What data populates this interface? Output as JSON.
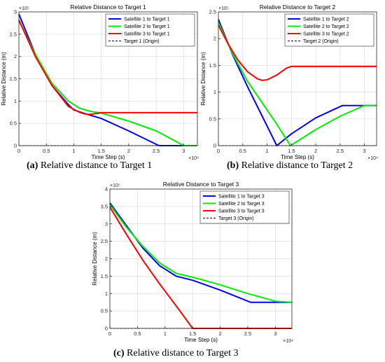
{
  "captions": [
    {
      "tag": "(a)",
      "text": " Relative distance to Target 1"
    },
    {
      "tag": "(b)",
      "text": " Relative distance to Target 2"
    },
    {
      "tag": "(c)",
      "text": " Relative distance to Target 3"
    }
  ],
  "colors": {
    "blue": "#0000ff",
    "green": "#00ee00",
    "red": "#ff0000",
    "black": "#000000"
  },
  "chart_data": [
    {
      "type": "line",
      "title": "Relative Distance to Target 1",
      "xlabel": "Time Step (s)",
      "ylabel": "Relative Distance (m)",
      "xlim": [
        0,
        32500
      ],
      "ylim": [
        0,
        300000
      ],
      "x_exponent": "×10⁴",
      "y_exponent": "×10⁵",
      "xticks": [
        0,
        5000,
        10000,
        15000,
        20000,
        25000,
        30000
      ],
      "xtick_labels": [
        "0",
        "0.5",
        "1",
        "1.5",
        "2",
        "2.5",
        "3"
      ],
      "yticks": [
        0,
        50000,
        100000,
        150000,
        200000,
        250000,
        300000
      ],
      "ytick_labels": [
        "0",
        "0.5",
        "1",
        "1.5",
        "2",
        "2.5",
        "3"
      ],
      "grid": true,
      "legend_position": "top-right",
      "series": [
        {
          "name": "Satellite 1 to Target 1",
          "color": "#0000ff",
          "x": [
            0,
            3000,
            6000,
            9000,
            10000,
            12000,
            15000,
            20000,
            25500,
            32500
          ],
          "y": [
            295000,
            205000,
            135000,
            92000,
            80000,
            72000,
            61000,
            33000,
            0,
            0
          ]
        },
        {
          "name": "Satellite 2 to Target 1",
          "color": "#00ee00",
          "x": [
            0,
            3000,
            6000,
            9000,
            11000,
            13000,
            15000,
            20000,
            25000,
            30000,
            32500
          ],
          "y": [
            280000,
            205000,
            140000,
            100000,
            84000,
            77000,
            73000,
            55000,
            33000,
            0,
            0
          ]
        },
        {
          "name": "Satellite 3 to Target 1",
          "color": "#ff0000",
          "x": [
            0,
            3000,
            6000,
            9000,
            11000,
            12000,
            13000,
            14000,
            15000,
            20000,
            32500
          ],
          "y": [
            282000,
            200000,
            135000,
            88000,
            75000,
            71000,
            70000,
            72000,
            74000,
            74000,
            74000
          ]
        },
        {
          "name": "Target 1 (Origin)",
          "color": "#000000",
          "dashed": true,
          "x": [
            0,
            32500
          ],
          "y": [
            0,
            0
          ]
        }
      ]
    },
    {
      "type": "line",
      "title": "Relative Distance to Target 2",
      "xlabel": "Time Step (s)",
      "ylabel": "Relative Distance (m)",
      "xlim": [
        0,
        32500
      ],
      "ylim": [
        0,
        250000
      ],
      "x_exponent": "×10⁴",
      "y_exponent": "×10⁵",
      "xticks": [
        0,
        5000,
        10000,
        15000,
        20000,
        25000,
        30000
      ],
      "xtick_labels": [
        "0",
        "0.5",
        "1",
        "1.5",
        "2",
        "2.5",
        "3"
      ],
      "yticks": [
        0,
        50000,
        100000,
        150000,
        200000,
        250000
      ],
      "ytick_labels": [
        "0",
        "0.5",
        "1",
        "1.5",
        "2",
        "2.5"
      ],
      "grid": true,
      "legend_position": "top-right",
      "series": [
        {
          "name": "Satellite 1 to Target 2",
          "color": "#0000ff",
          "x": [
            0,
            3000,
            6000,
            9000,
            12000,
            15000,
            20000,
            25500,
            32500
          ],
          "y": [
            236000,
            168000,
            110000,
            55000,
            0,
            22000,
            52000,
            75000,
            75000
          ]
        },
        {
          "name": "Satellite 2 to Target 2",
          "color": "#00ee00",
          "x": [
            0,
            3000,
            6000,
            9000,
            12000,
            14800,
            20000,
            25000,
            30000,
            32500
          ],
          "y": [
            230000,
            170000,
            120000,
            80000,
            40000,
            0,
            30000,
            55000,
            75000,
            75000
          ]
        },
        {
          "name": "Satellite 3 to Target 2",
          "color": "#ff0000",
          "x": [
            0,
            2000,
            4000,
            6000,
            8000,
            9000,
            10000,
            12000,
            14000,
            15000,
            20000,
            32500
          ],
          "y": [
            225000,
            190000,
            160000,
            138000,
            125000,
            122000,
            123000,
            132000,
            145000,
            148000,
            148000,
            148000
          ]
        },
        {
          "name": "Target 2 (Origin)",
          "color": "#000000",
          "dashed": true,
          "x": [
            0,
            32500
          ],
          "y": [
            0,
            0
          ]
        }
      ]
    },
    {
      "type": "line",
      "title": "Relative Distance to Target 3",
      "xlabel": "Time Step (s)",
      "ylabel": "Relative Distance (m)",
      "xlim": [
        0,
        33000
      ],
      "ylim": [
        0,
        400000
      ],
      "x_exponent": "×10⁴",
      "y_exponent": "×10⁵",
      "xticks": [
        0,
        5000,
        10000,
        15000,
        20000,
        25000,
        30000
      ],
      "xtick_labels": [
        "0",
        "0.5",
        "1",
        "1.5",
        "2",
        "2.5",
        "3"
      ],
      "yticks": [
        0,
        50000,
        100000,
        150000,
        200000,
        250000,
        300000,
        350000,
        400000
      ],
      "ytick_labels": [
        "0",
        "0.5",
        "1",
        "1.5",
        "2",
        "2.5",
        "3",
        "3.5",
        "4"
      ],
      "grid": true,
      "legend_position": "top-right",
      "series": [
        {
          "name": "Satellite 1 to Target 3",
          "color": "#0000ff",
          "x": [
            0,
            3000,
            6000,
            9000,
            12000,
            15000,
            20000,
            25500,
            33000
          ],
          "y": [
            360000,
            295000,
            230000,
            180000,
            150000,
            138000,
            110000,
            75000,
            75000
          ]
        },
        {
          "name": "Satellite 2 to Target 3",
          "color": "#00ee00",
          "x": [
            0,
            3000,
            6000,
            9000,
            12000,
            15000,
            20000,
            25000,
            30000,
            33000
          ],
          "y": [
            355000,
            290000,
            235000,
            188000,
            158000,
            147000,
            125000,
            100000,
            78000,
            75000
          ]
        },
        {
          "name": "Satellite 3 to Target 3",
          "color": "#ff0000",
          "x": [
            0,
            3000,
            6000,
            9000,
            12000,
            15000,
            20000,
            33000
          ],
          "y": [
            348000,
            270000,
            195000,
            128000,
            65000,
            0,
            0,
            0
          ]
        },
        {
          "name": "Target 3 (Origin)",
          "color": "#000000",
          "dashed": true,
          "x": [
            0,
            33000
          ],
          "y": [
            0,
            0
          ]
        }
      ]
    }
  ]
}
